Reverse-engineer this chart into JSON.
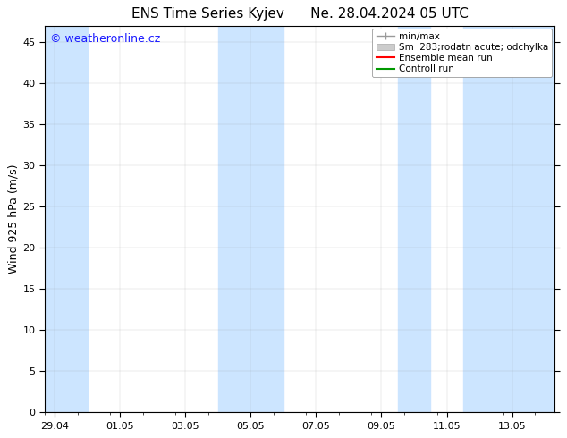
{
  "title_left": "ENS Time Series Kyjev",
  "title_right": "Ne. 28.04.2024 05 UTC",
  "ylabel": "Wind 925 hPa (m/s)",
  "watermark": "© weatheronline.cz",
  "watermark_color": "#1a1aff",
  "ylim": [
    0,
    47
  ],
  "yticks": [
    0,
    5,
    10,
    15,
    20,
    25,
    30,
    35,
    40,
    45
  ],
  "xtick_labels": [
    "29.04",
    "01.05",
    "03.05",
    "05.05",
    "07.05",
    "09.05",
    "11.05",
    "13.05"
  ],
  "xtick_positions": [
    0,
    2,
    4,
    6,
    8,
    10,
    12,
    14
  ],
  "xlim": [
    -0.3,
    15.3
  ],
  "background_color": "#ffffff",
  "plot_bg_color": "#ffffff",
  "shade_color": "#cce5ff",
  "shade_positions": [
    [
      -0.3,
      1.0
    ],
    [
      5.0,
      7.0
    ],
    [
      10.5,
      11.5
    ],
    [
      12.5,
      15.3
    ]
  ],
  "legend_labels": [
    "min/max",
    "Sm  283;rodatn acute; odchylka",
    "Ensemble mean run",
    "Controll run"
  ],
  "legend_colors": [
    "#999999",
    "#cccccc",
    "#ff0000",
    "#009900"
  ],
  "title_fontsize": 11,
  "axis_label_fontsize": 9,
  "tick_fontsize": 8,
  "watermark_fontsize": 9,
  "legend_fontsize": 7.5
}
